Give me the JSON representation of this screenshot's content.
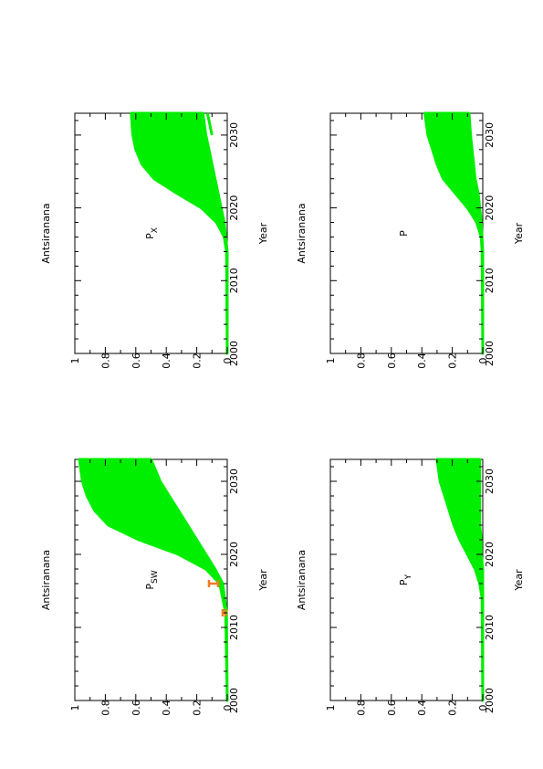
{
  "colors": {
    "simulation": "#00ee00",
    "observed": "#f47a1f",
    "axis": "#000000"
  },
  "chart_data": [
    {
      "type": "area",
      "panel": "top-left",
      "title": "Antsiranana",
      "xlabel": "Year",
      "ylabel": "P",
      "ylabel_sub": "SW",
      "xlim": [
        2000,
        2033
      ],
      "ylim": [
        0,
        1
      ],
      "xticks": [
        "2000",
        "2010",
        "2020",
        "2030"
      ],
      "yticks": [
        "0",
        "0.2",
        "0.4",
        "0.6",
        "0.8",
        "1"
      ],
      "series": [
        {
          "role": "upper",
          "x": [
            2000,
            2012,
            2016,
            2018,
            2020,
            2022,
            2024,
            2026,
            2028,
            2030,
            2033
          ],
          "values": [
            0,
            0.01,
            0.05,
            0.14,
            0.32,
            0.58,
            0.78,
            0.87,
            0.92,
            0.95,
            0.97
          ]
        },
        {
          "role": "lower",
          "x": [
            2000,
            2012,
            2016,
            2018,
            2020,
            2022,
            2024,
            2026,
            2028,
            2030,
            2033
          ],
          "values": [
            0,
            0.005,
            0.03,
            0.08,
            0.14,
            0.2,
            0.26,
            0.32,
            0.38,
            0.44,
            0.5
          ]
        }
      ],
      "observed": [
        {
          "x": 2012,
          "low": 0.01,
          "high": 0.03
        },
        {
          "x": 2016,
          "low": 0.06,
          "high": 0.12
        }
      ]
    },
    {
      "type": "area",
      "panel": "top-right",
      "title": "Antsiranana",
      "xlabel": "Year",
      "ylabel": "P",
      "ylabel_sub": "X",
      "xlim": [
        2000,
        2033
      ],
      "ylim": [
        0,
        1
      ],
      "xticks": [
        "2000",
        "2010",
        "2020",
        "2030"
      ],
      "yticks": [
        "0",
        "0.2",
        "0.4",
        "0.6",
        "0.8",
        "1"
      ],
      "series": [
        {
          "role": "upper",
          "x": [
            2000,
            2014,
            2016,
            2018,
            2020,
            2022,
            2024,
            2026,
            2028,
            2030,
            2033
          ],
          "values": [
            0,
            0.005,
            0.02,
            0.07,
            0.17,
            0.33,
            0.48,
            0.56,
            0.6,
            0.62,
            0.63
          ]
        },
        {
          "role": "lower",
          "x": [
            2000,
            2014,
            2016,
            2018,
            2020,
            2022,
            2024,
            2026,
            2028,
            2030,
            2033
          ],
          "values": [
            0,
            0.0,
            0.01,
            0.02,
            0.04,
            0.06,
            0.08,
            0.1,
            0.12,
            0.14,
            0.16
          ]
        },
        {
          "role": "outlier",
          "x": [
            2030,
            2031,
            2032,
            2033
          ],
          "values": [
            0.1,
            0.11,
            0.12,
            0.13
          ]
        }
      ]
    },
    {
      "type": "area",
      "panel": "bottom-left",
      "title": "Antsiranana",
      "xlabel": "Year",
      "ylabel": "P",
      "ylabel_sub": "Y",
      "xlim": [
        2000,
        2033
      ],
      "ylim": [
        0,
        1
      ],
      "xticks": [
        "2000",
        "2010",
        "2020",
        "2030"
      ],
      "yticks": [
        "0",
        "0.2",
        "0.4",
        "0.6",
        "0.8",
        "1"
      ],
      "series": [
        {
          "role": "upper",
          "x": [
            2000,
            2014,
            2016,
            2018,
            2020,
            2022,
            2024,
            2026,
            2028,
            2030,
            2033
          ],
          "values": [
            0,
            0.005,
            0.02,
            0.05,
            0.1,
            0.15,
            0.19,
            0.22,
            0.25,
            0.28,
            0.3
          ]
        },
        {
          "role": "lower",
          "x": [
            2000,
            2014,
            2016,
            2018,
            2020,
            2022,
            2024,
            2026,
            2028,
            2030,
            2033
          ],
          "values": [
            0,
            0,
            0,
            0,
            0.01,
            0.01,
            0.02,
            0.02,
            0.02,
            0.02,
            0.02
          ]
        }
      ]
    },
    {
      "type": "area",
      "panel": "bottom-right",
      "title": "Antsiranana",
      "xlabel": "Year",
      "ylabel": "P",
      "ylabel_sub": "",
      "xlim": [
        2000,
        2033
      ],
      "ylim": [
        0,
        1
      ],
      "xticks": [
        "2000",
        "2010",
        "2020",
        "2030"
      ],
      "yticks": [
        "0",
        "0.2",
        "0.4",
        "0.6",
        "0.8",
        "1"
      ],
      "series": [
        {
          "role": "upper",
          "x": [
            2000,
            2014,
            2016,
            2018,
            2020,
            2022,
            2024,
            2026,
            2028,
            2030,
            2033
          ],
          "values": [
            0,
            0.005,
            0.01,
            0.04,
            0.1,
            0.18,
            0.26,
            0.3,
            0.33,
            0.36,
            0.38
          ]
        },
        {
          "role": "lower",
          "x": [
            2000,
            2014,
            2016,
            2018,
            2020,
            2022,
            2024,
            2026,
            2028,
            2030,
            2033
          ],
          "values": [
            0,
            0,
            0.005,
            0.01,
            0.02,
            0.03,
            0.05,
            0.06,
            0.07,
            0.08,
            0.09
          ]
        }
      ]
    }
  ]
}
